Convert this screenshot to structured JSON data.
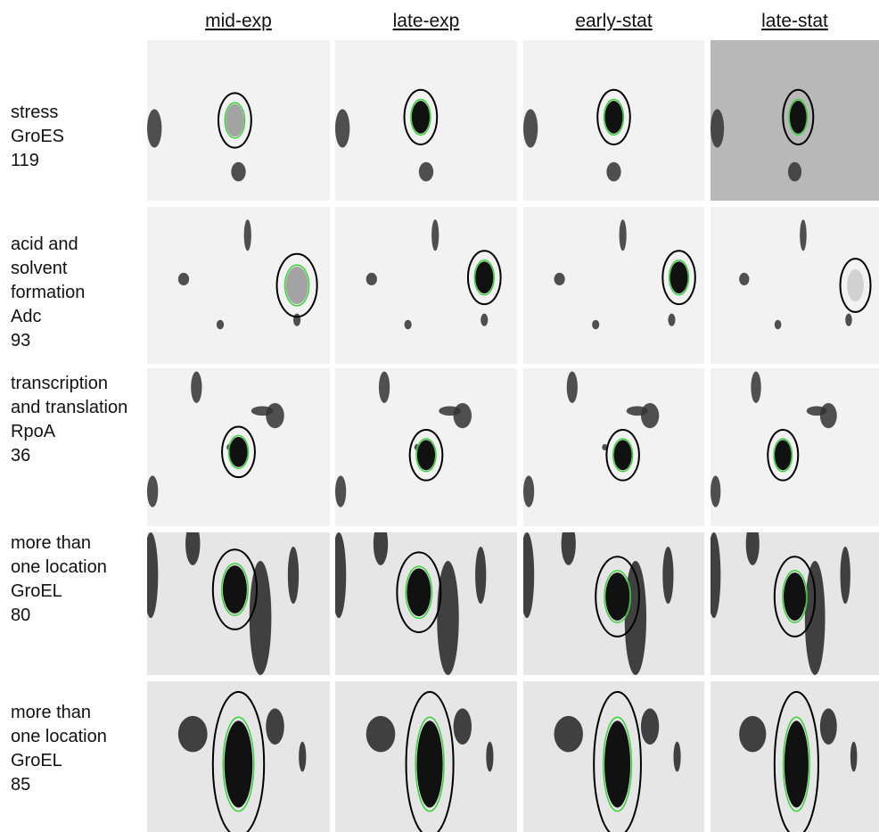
{
  "columns": [
    "mid-exp",
    "late-exp",
    "early-stat",
    "late-stat"
  ],
  "rows": [
    {
      "label": [
        "stress",
        "GroES",
        "119"
      ]
    },
    {
      "label": [
        "acid and",
        "solvent",
        "formation",
        "Adc",
        "93"
      ]
    },
    {
      "label": [
        "transcription",
        "and translation",
        "RpoA",
        "36"
      ]
    },
    {
      "label": [
        "more than",
        "one location",
        "GroEL",
        "80"
      ]
    },
    {
      "label": [
        "more than",
        "one location",
        "GroEL",
        "85"
      ]
    }
  ]
}
